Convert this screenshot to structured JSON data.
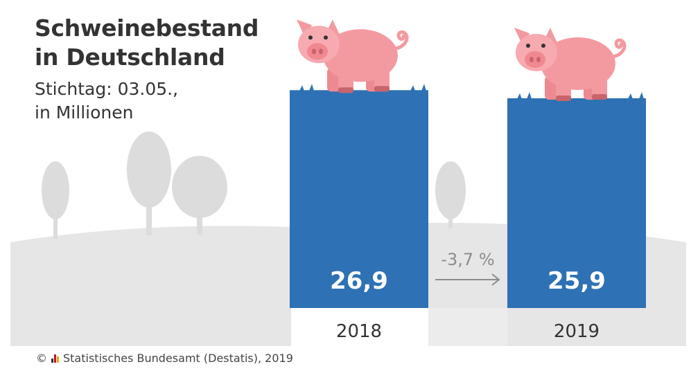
{
  "title_lines": [
    "Schweinebestand",
    "in Deutschland"
  ],
  "subtitle_lines": [
    "Stichtag: 03.05.,",
    "in Millionen"
  ],
  "change_label": "-3,7 %",
  "footer": {
    "copyright": "©",
    "text": "Statistisches Bundesamt (Destatis), 2019"
  },
  "colors": {
    "bar": "#2e71b4",
    "background_shapes": "#e3e3e3",
    "pig": "#f39aa0",
    "text": "#333333",
    "arrow": "#8c8c8c"
  },
  "icons": [
    "pig-icon",
    "tree-icon",
    "arrow-right-icon",
    "destatis-logo-icon"
  ],
  "chart_data": {
    "type": "bar",
    "categories": [
      "2018",
      "2019"
    ],
    "values": [
      26.9,
      25.9
    ],
    "value_labels": [
      "26,9",
      "25,9"
    ],
    "title": "Schweinebestand in Deutschland",
    "subtitle": "Stichtag: 03.05., in Millionen",
    "grid": false,
    "legend": "none"
  }
}
